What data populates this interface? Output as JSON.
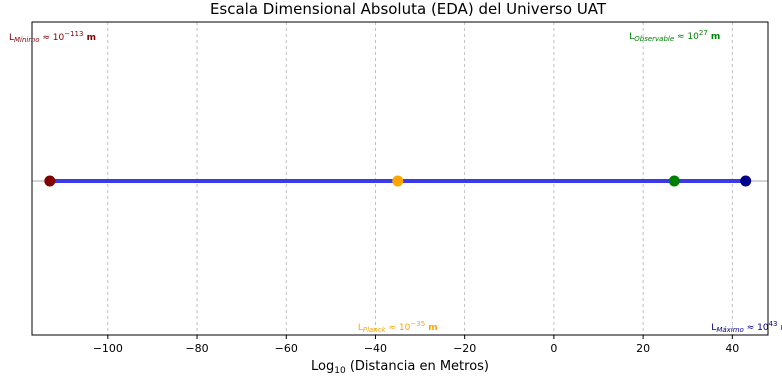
{
  "chart_data": {
    "type": "scatter",
    "title": "Escala Dimensional Absoluta (EDA) del Universo UAT",
    "xlabel": {
      "pre": "Log",
      "sub": "10",
      "post": " (Distancia en Metros)"
    },
    "ylabel": "",
    "xlim": [
      -117,
      48
    ],
    "xticks": [
      -100,
      -80,
      -60,
      -40,
      -20,
      0,
      20,
      40
    ],
    "xtick_labels": [
      "−100",
      "−80",
      "−60",
      "−40",
      "−20",
      "0",
      "20",
      "40"
    ],
    "grid": {
      "x": true,
      "style": "dashed"
    },
    "line": {
      "from": -113,
      "to": 43,
      "color": "#3a3ae8"
    },
    "points": [
      {
        "x": -113,
        "color": "#800000",
        "label": {
          "base": "L",
          "sub": "Mínimo",
          "mid": " ≈ 10",
          "sup": "−113",
          "unit": " m"
        },
        "position": "top-left"
      },
      {
        "x": -35,
        "color": "#ffa500",
        "label": {
          "base": "L",
          "sub": "Planck",
          "mid": " ≈ 10",
          "sup": "−35",
          "unit": " m"
        },
        "position": "bottom-center"
      },
      {
        "x": 27,
        "color": "#008000",
        "label": {
          "base": "L",
          "sub": "Observable",
          "mid": " ≈ 10",
          "sup": "27",
          "unit": " m"
        },
        "position": "top-right"
      },
      {
        "x": 43,
        "color": "#00008b",
        "label": {
          "base": "L",
          "sub": "Máximo",
          "mid": " ≈ 10",
          "sup": "43",
          "unit": " m"
        },
        "position": "bottom-right"
      }
    ]
  }
}
